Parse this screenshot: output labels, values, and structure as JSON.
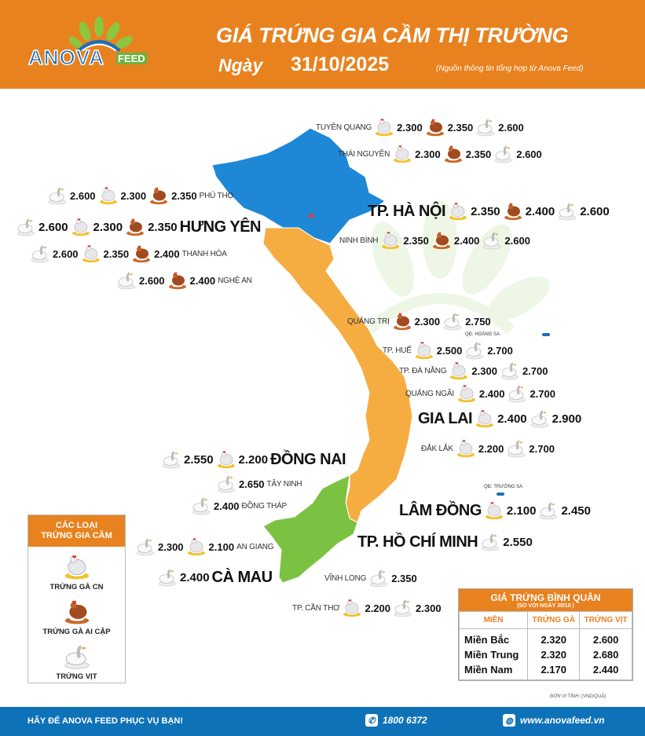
{
  "header": {
    "logo": {
      "brand": "ANOVA",
      "sub": "FEED"
    },
    "title": "GIÁ TRỨNG GIA CẦM THỊ TRƯỜNG",
    "date_label": "Ngày",
    "date": "31/10/2025",
    "source": "(Nguồn thông tin tổng hợp từ Anova Feed)"
  },
  "watermark": "ANOVAFEED",
  "colors": {
    "accent": "#e8821f",
    "footer": "#0e72b8",
    "north": "#1e88d6",
    "central": "#f5ad42",
    "south": "#7cc242"
  },
  "egg_types": {
    "cn": "Trứng gà CN",
    "ac": "Trứng gà Ai Cập",
    "vit": "Trứng vịt"
  },
  "provinces": [
    {
      "name": "TUYÊN QUANG",
      "big": false,
      "label_first": true,
      "prices": [
        {
          "type": "cn",
          "value": "2.300"
        },
        {
          "type": "ac",
          "value": "2.350"
        },
        {
          "type": "vit",
          "value": "2.600"
        }
      ]
    },
    {
      "name": "THÁI NGUYÊN",
      "big": false,
      "label_first": true,
      "prices": [
        {
          "type": "cn",
          "value": "2.300"
        },
        {
          "type": "ac",
          "value": "2.350"
        },
        {
          "type": "vit",
          "value": "2.600"
        }
      ]
    },
    {
      "name": "PHÚ THỌ",
      "big": false,
      "label_first": false,
      "prices": [
        {
          "type": "vit",
          "value": "2.600"
        },
        {
          "type": "cn",
          "value": "2.300"
        },
        {
          "type": "ac",
          "value": "2.350"
        }
      ]
    },
    {
      "name": "TP. HÀ NỘI",
      "big": true,
      "label_first": true,
      "prices": [
        {
          "type": "cn",
          "value": "2.350"
        },
        {
          "type": "ac",
          "value": "2.400"
        },
        {
          "type": "vit",
          "value": "2.600"
        }
      ]
    },
    {
      "name": "HƯNG YÊN",
      "big": true,
      "label_first": false,
      "prices": [
        {
          "type": "vit",
          "value": "2.600"
        },
        {
          "type": "cn",
          "value": "2.300"
        },
        {
          "type": "ac",
          "value": "2.350"
        }
      ]
    },
    {
      "name": "NINH BÌNH",
      "big": false,
      "label_first": true,
      "prices": [
        {
          "type": "cn",
          "value": "2.350"
        },
        {
          "type": "ac",
          "value": "2.400"
        },
        {
          "type": "vit",
          "value": "2.600"
        }
      ]
    },
    {
      "name": "THANH HÓA",
      "big": false,
      "label_first": false,
      "prices": [
        {
          "type": "vit",
          "value": "2.600"
        },
        {
          "type": "cn",
          "value": "2.350"
        },
        {
          "type": "ac",
          "value": "2.400"
        }
      ]
    },
    {
      "name": "NGHỆ AN",
      "big": false,
      "label_first": false,
      "prices": [
        {
          "type": "vit",
          "value": "2.600"
        },
        {
          "type": "ac",
          "value": "2.400"
        }
      ]
    },
    {
      "name": "QUẢNG TRỊ",
      "big": false,
      "label_first": true,
      "prices": [
        {
          "type": "ac",
          "value": "2.300"
        },
        {
          "type": "vit",
          "value": "2.750"
        }
      ]
    },
    {
      "name": "TP. HUẾ",
      "big": false,
      "label_first": true,
      "prices": [
        {
          "type": "cn",
          "value": "2.500"
        },
        {
          "type": "vit",
          "value": "2.700"
        }
      ]
    },
    {
      "name": "TP. ĐÀ NẴNG",
      "big": false,
      "label_first": true,
      "prices": [
        {
          "type": "cn",
          "value": "2.300"
        },
        {
          "type": "vit",
          "value": "2.700"
        }
      ]
    },
    {
      "name": "QUẢNG NGÃI",
      "big": false,
      "label_first": true,
      "prices": [
        {
          "type": "cn",
          "value": "2.400"
        },
        {
          "type": "vit",
          "value": "2.700"
        }
      ]
    },
    {
      "name": "GIA LAI",
      "big": true,
      "label_first": true,
      "prices": [
        {
          "type": "cn",
          "value": "2.400"
        },
        {
          "type": "vit",
          "value": "2.900"
        }
      ]
    },
    {
      "name": "ĐẮK LẮK",
      "big": false,
      "label_first": true,
      "prices": [
        {
          "type": "cn",
          "value": "2.200"
        },
        {
          "type": "vit",
          "value": "2.700"
        }
      ]
    },
    {
      "name": "ĐỒNG NAI",
      "big": true,
      "label_first": false,
      "prices": [
        {
          "type": "vit",
          "value": "2.550"
        },
        {
          "type": "cn",
          "value": "2.200"
        }
      ]
    },
    {
      "name": "TÂY NINH",
      "big": false,
      "label_first": false,
      "prices": [
        {
          "type": "vit",
          "value": "2.650"
        }
      ]
    },
    {
      "name": "ĐỒNG THÁP",
      "big": false,
      "label_first": false,
      "prices": [
        {
          "type": "vit",
          "value": "2.400"
        }
      ]
    },
    {
      "name": "LÂM ĐỒNG",
      "big": true,
      "label_first": true,
      "prices": [
        {
          "type": "cn",
          "value": "2.100"
        },
        {
          "type": "vit",
          "value": "2.450"
        }
      ]
    },
    {
      "name": "AN GIANG",
      "big": false,
      "label_first": false,
      "prices": [
        {
          "type": "vit",
          "value": "2.300"
        },
        {
          "type": "cn",
          "value": "2.100"
        }
      ]
    },
    {
      "name": "TP. HỒ CHÍ MINH",
      "big": true,
      "label_first": true,
      "prices": [
        {
          "type": "vit",
          "value": "2.550"
        }
      ]
    },
    {
      "name": "CÀ MAU",
      "big": true,
      "label_first": false,
      "prices": [
        {
          "type": "vit",
          "value": "2.400"
        }
      ]
    },
    {
      "name": "VĨNH LONG",
      "big": false,
      "label_first": true,
      "prices": [
        {
          "type": "vit",
          "value": "2.350"
        }
      ]
    },
    {
      "name": "TP. CẦN THƠ",
      "big": false,
      "label_first": true,
      "prices": [
        {
          "type": "cn",
          "value": "2.200"
        },
        {
          "type": "vit",
          "value": "2.300"
        }
      ]
    }
  ],
  "islands": {
    "hoang_sa": "QĐ. HOÀNG SA",
    "truong_sa": "QĐ. TRƯỜNG SA"
  },
  "legend": {
    "title_line1": "CÁC LOẠI",
    "title_line2": "TRỨNG GIA CẦM",
    "items": [
      {
        "type": "cn",
        "label": "TRỨNG GÀ CN"
      },
      {
        "type": "ac",
        "label": "TRỨNG GÀ AI CẬP"
      },
      {
        "type": "vit",
        "label": "TRỨNG VỊT"
      }
    ]
  },
  "average": {
    "title": "GIÁ TRỨNG BÌNH QUÂN",
    "subtitle": "(SO VỚI NGÀY   30/10      )",
    "columns": [
      "MIỀN",
      "TRỨNG GÀ",
      "TRỨNG VỊT"
    ],
    "rows": [
      [
        "Miền Bắc",
        "2.320",
        "2.600"
      ],
      [
        "Miền Trung",
        "2.320",
        "2.680"
      ],
      [
        "Miền Nam",
        "2.170",
        "2.440"
      ]
    ],
    "unit": "ĐƠN VỊ TÍNH: (VND/QUẢ)"
  },
  "footer": {
    "slogan": "HÃY ĐỂ ANOVA FEED PHỤC VỤ BẠN!",
    "phone": "1800 6372",
    "website": "www.anovafeed.vn"
  }
}
